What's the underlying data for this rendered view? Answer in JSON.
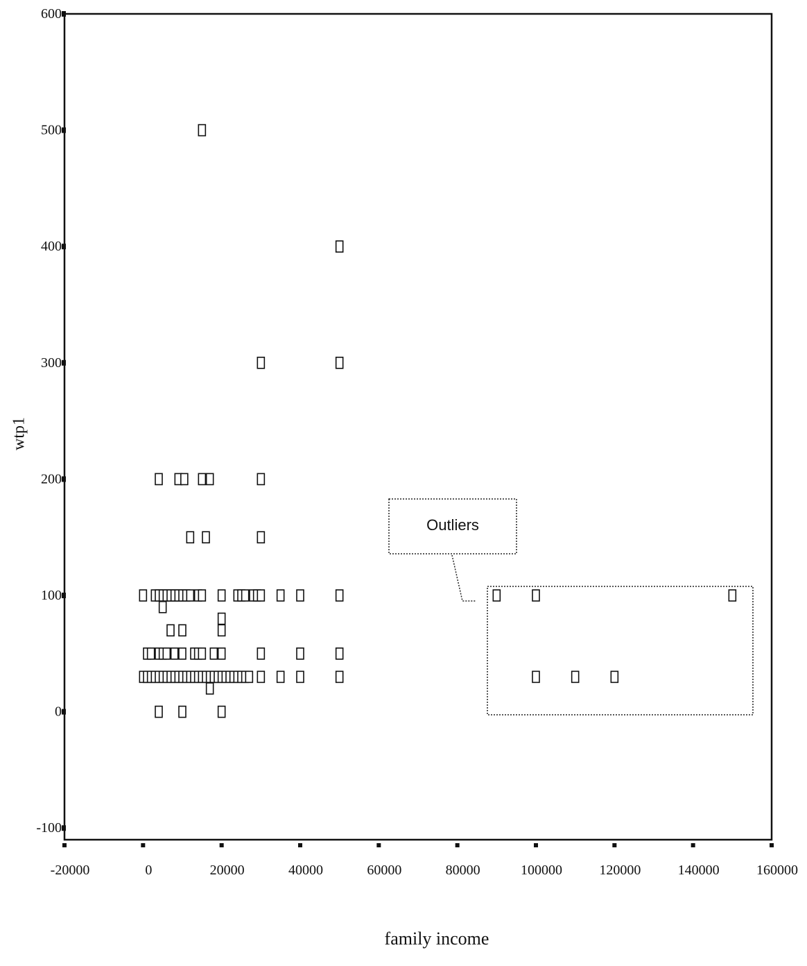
{
  "chart_data": {
    "type": "scatter",
    "xlabel": "family income",
    "ylabel": "wtp1",
    "xlim": [
      -20000,
      160000
    ],
    "ylim": [
      -110,
      600
    ],
    "xticks": [
      "-20000",
      "0",
      "20000",
      "40000",
      "60000",
      "80000",
      "100000",
      "120000",
      "140000",
      "160000"
    ],
    "yticks": [
      "600",
      "500",
      "400",
      "300",
      "200",
      "100",
      "0",
      "-100"
    ],
    "annotation": "Outliers",
    "points": [
      {
        "x": 15000,
        "y": 500
      },
      {
        "x": 50000,
        "y": 400
      },
      {
        "x": 30000,
        "y": 300
      },
      {
        "x": 50000,
        "y": 300
      },
      {
        "x": 4000,
        "y": 200
      },
      {
        "x": 9000,
        "y": 200
      },
      {
        "x": 10500,
        "y": 200
      },
      {
        "x": 15000,
        "y": 200
      },
      {
        "x": 17000,
        "y": 200
      },
      {
        "x": 30000,
        "y": 200
      },
      {
        "x": 12000,
        "y": 150
      },
      {
        "x": 16000,
        "y": 150
      },
      {
        "x": 30000,
        "y": 150
      },
      {
        "x": 0,
        "y": 100
      },
      {
        "x": 3000,
        "y": 100
      },
      {
        "x": 4000,
        "y": 100
      },
      {
        "x": 5000,
        "y": 100
      },
      {
        "x": 6000,
        "y": 100
      },
      {
        "x": 7000,
        "y": 100
      },
      {
        "x": 8000,
        "y": 100
      },
      {
        "x": 9000,
        "y": 100
      },
      {
        "x": 10000,
        "y": 100
      },
      {
        "x": 11000,
        "y": 100
      },
      {
        "x": 12000,
        "y": 100
      },
      {
        "x": 14000,
        "y": 100
      },
      {
        "x": 15000,
        "y": 100
      },
      {
        "x": 20000,
        "y": 100
      },
      {
        "x": 24000,
        "y": 100
      },
      {
        "x": 25000,
        "y": 100
      },
      {
        "x": 26000,
        "y": 100
      },
      {
        "x": 28000,
        "y": 100
      },
      {
        "x": 29000,
        "y": 100
      },
      {
        "x": 30000,
        "y": 100
      },
      {
        "x": 35000,
        "y": 100
      },
      {
        "x": 40000,
        "y": 100
      },
      {
        "x": 50000,
        "y": 100
      },
      {
        "x": 5000,
        "y": 90
      },
      {
        "x": 7000,
        "y": 70
      },
      {
        "x": 10000,
        "y": 70
      },
      {
        "x": 20000,
        "y": 70
      },
      {
        "x": 20000,
        "y": 80
      },
      {
        "x": 1000,
        "y": 50
      },
      {
        "x": 2000,
        "y": 50
      },
      {
        "x": 4000,
        "y": 50
      },
      {
        "x": 5000,
        "y": 50
      },
      {
        "x": 6000,
        "y": 50
      },
      {
        "x": 8000,
        "y": 50
      },
      {
        "x": 10000,
        "y": 50
      },
      {
        "x": 13000,
        "y": 50
      },
      {
        "x": 14000,
        "y": 50
      },
      {
        "x": 15000,
        "y": 50
      },
      {
        "x": 18000,
        "y": 50
      },
      {
        "x": 20000,
        "y": 50
      },
      {
        "x": 30000,
        "y": 50
      },
      {
        "x": 40000,
        "y": 50
      },
      {
        "x": 50000,
        "y": 50
      },
      {
        "x": 0,
        "y": 30
      },
      {
        "x": 1000,
        "y": 30
      },
      {
        "x": 2000,
        "y": 30
      },
      {
        "x": 3000,
        "y": 30
      },
      {
        "x": 4000,
        "y": 30
      },
      {
        "x": 5000,
        "y": 30
      },
      {
        "x": 6000,
        "y": 30
      },
      {
        "x": 7000,
        "y": 30
      },
      {
        "x": 8000,
        "y": 30
      },
      {
        "x": 9000,
        "y": 30
      },
      {
        "x": 10000,
        "y": 30
      },
      {
        "x": 11000,
        "y": 30
      },
      {
        "x": 12000,
        "y": 30
      },
      {
        "x": 13000,
        "y": 30
      },
      {
        "x": 14000,
        "y": 30
      },
      {
        "x": 15000,
        "y": 30
      },
      {
        "x": 16000,
        "y": 30
      },
      {
        "x": 17000,
        "y": 30
      },
      {
        "x": 18000,
        "y": 30
      },
      {
        "x": 19000,
        "y": 30
      },
      {
        "x": 20000,
        "y": 30
      },
      {
        "x": 21000,
        "y": 30
      },
      {
        "x": 22000,
        "y": 30
      },
      {
        "x": 23000,
        "y": 30
      },
      {
        "x": 24000,
        "y": 30
      },
      {
        "x": 25000,
        "y": 30
      },
      {
        "x": 26000,
        "y": 30
      },
      {
        "x": 27000,
        "y": 30
      },
      {
        "x": 30000,
        "y": 30
      },
      {
        "x": 35000,
        "y": 30
      },
      {
        "x": 40000,
        "y": 30
      },
      {
        "x": 50000,
        "y": 30
      },
      {
        "x": 17000,
        "y": 20
      },
      {
        "x": 4000,
        "y": 0
      },
      {
        "x": 10000,
        "y": 0
      },
      {
        "x": 20000,
        "y": 0
      },
      {
        "x": 90000,
        "y": 100
      },
      {
        "x": 100000,
        "y": 100
      },
      {
        "x": 150000,
        "y": 100
      },
      {
        "x": 100000,
        "y": 30
      },
      {
        "x": 110000,
        "y": 30
      },
      {
        "x": 120000,
        "y": 30
      }
    ]
  }
}
